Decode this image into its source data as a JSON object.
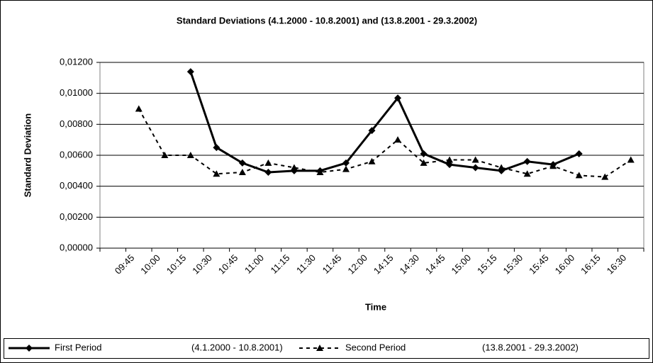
{
  "chart_data": {
    "type": "line",
    "title": "Standard Deviations (4.1.2000 - 10.8.2001) and (13.8.2001 - 29.3.2002)",
    "x_label": "Time",
    "y_label": "Standard Deviation",
    "categories": [
      null,
      "09:45",
      "10:00",
      "10:15",
      "10:30",
      "10:45",
      "11:00",
      "11:15",
      "11:30",
      "11:45",
      "12:00",
      "14:15",
      "14:30",
      "14:45",
      "15:00",
      "15:15",
      "15:30",
      "15:45",
      "16:00",
      "16:15",
      "16:30"
    ],
    "ylim": [
      0,
      0.012
    ],
    "yticks": [
      {
        "value": 0,
        "label": "0,00000"
      },
      {
        "value": 0.002,
        "label": "0,00200"
      },
      {
        "value": 0.004,
        "label": "0,00400"
      },
      {
        "value": 0.006,
        "label": "0,00600"
      },
      {
        "value": 0.008,
        "label": "0,00800"
      },
      {
        "value": 0.01,
        "label": "0,01000"
      },
      {
        "value": 0.012,
        "label": "0,01200"
      }
    ],
    "grid": true,
    "series": [
      {
        "name": "First Period",
        "period": "(4.1.2000 - 10.8.2001)",
        "color": "#000000",
        "dash": "solid",
        "marker": "diamond",
        "values": [
          null,
          null,
          null,
          0.0114,
          0.0065,
          0.0055,
          0.0049,
          0.005,
          0.005,
          0.0055,
          0.0076,
          0.0097,
          0.0061,
          0.0054,
          0.0052,
          0.005,
          0.0056,
          0.0054,
          0.0061,
          null,
          null
        ]
      },
      {
        "name": "Second Period",
        "period": "(13.8.2001 - 29.3.2002)",
        "color": "#000000",
        "dash": "dashed",
        "marker": "triangle",
        "values": [
          null,
          0.009,
          0.006,
          0.006,
          0.0048,
          0.0049,
          0.0055,
          0.0052,
          0.0049,
          0.0051,
          0.0056,
          0.007,
          0.0055,
          0.0057,
          0.0057,
          0.0052,
          0.0048,
          0.0053,
          0.0047,
          0.0046,
          0.0057
        ]
      }
    ]
  }
}
